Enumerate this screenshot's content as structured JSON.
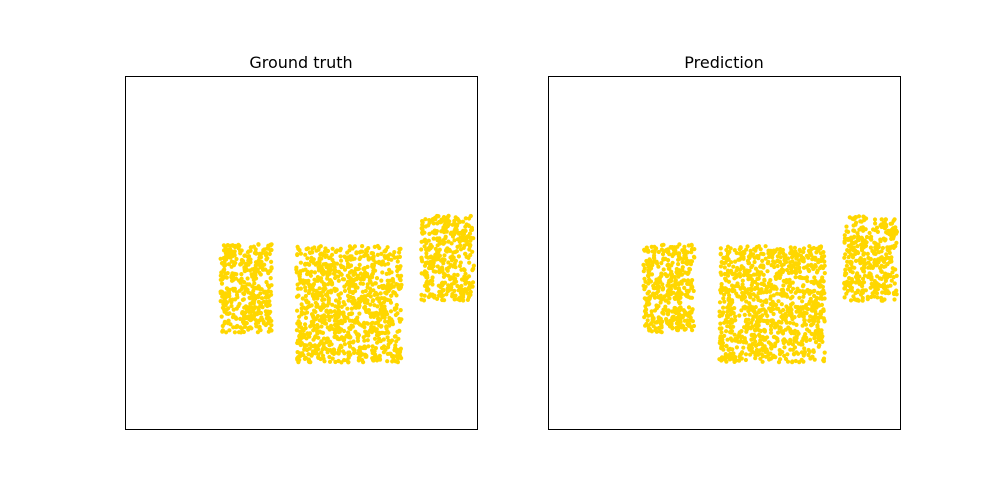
{
  "chart_data": [
    {
      "type": "scatter",
      "title": "Ground truth",
      "xlim": [
        0,
        1
      ],
      "ylim": [
        0,
        1
      ],
      "axes_visible": false,
      "grid": false,
      "point_color": "#FFD700",
      "clusters": [
        {
          "x_range": [
            0.27,
            0.415
          ],
          "y_range": [
            0.275,
            0.525
          ],
          "count": 420
        },
        {
          "x_range": [
            0.485,
            0.785
          ],
          "y_range": [
            0.19,
            0.52
          ],
          "count": 1000
        },
        {
          "x_range": [
            0.84,
            0.99
          ],
          "y_range": [
            0.365,
            0.605
          ],
          "count": 380
        }
      ]
    },
    {
      "type": "scatter",
      "title": "Prediction",
      "xlim": [
        0,
        1
      ],
      "ylim": [
        0,
        1
      ],
      "axes_visible": false,
      "grid": false,
      "point_color": "#FFD700",
      "clusters": [
        {
          "x_range": [
            0.27,
            0.415
          ],
          "y_range": [
            0.275,
            0.525
          ],
          "count": 420
        },
        {
          "x_range": [
            0.485,
            0.785
          ],
          "y_range": [
            0.19,
            0.52
          ],
          "count": 1000
        },
        {
          "x_range": [
            0.84,
            0.99
          ],
          "y_range": [
            0.365,
            0.605
          ],
          "count": 380
        }
      ]
    }
  ]
}
